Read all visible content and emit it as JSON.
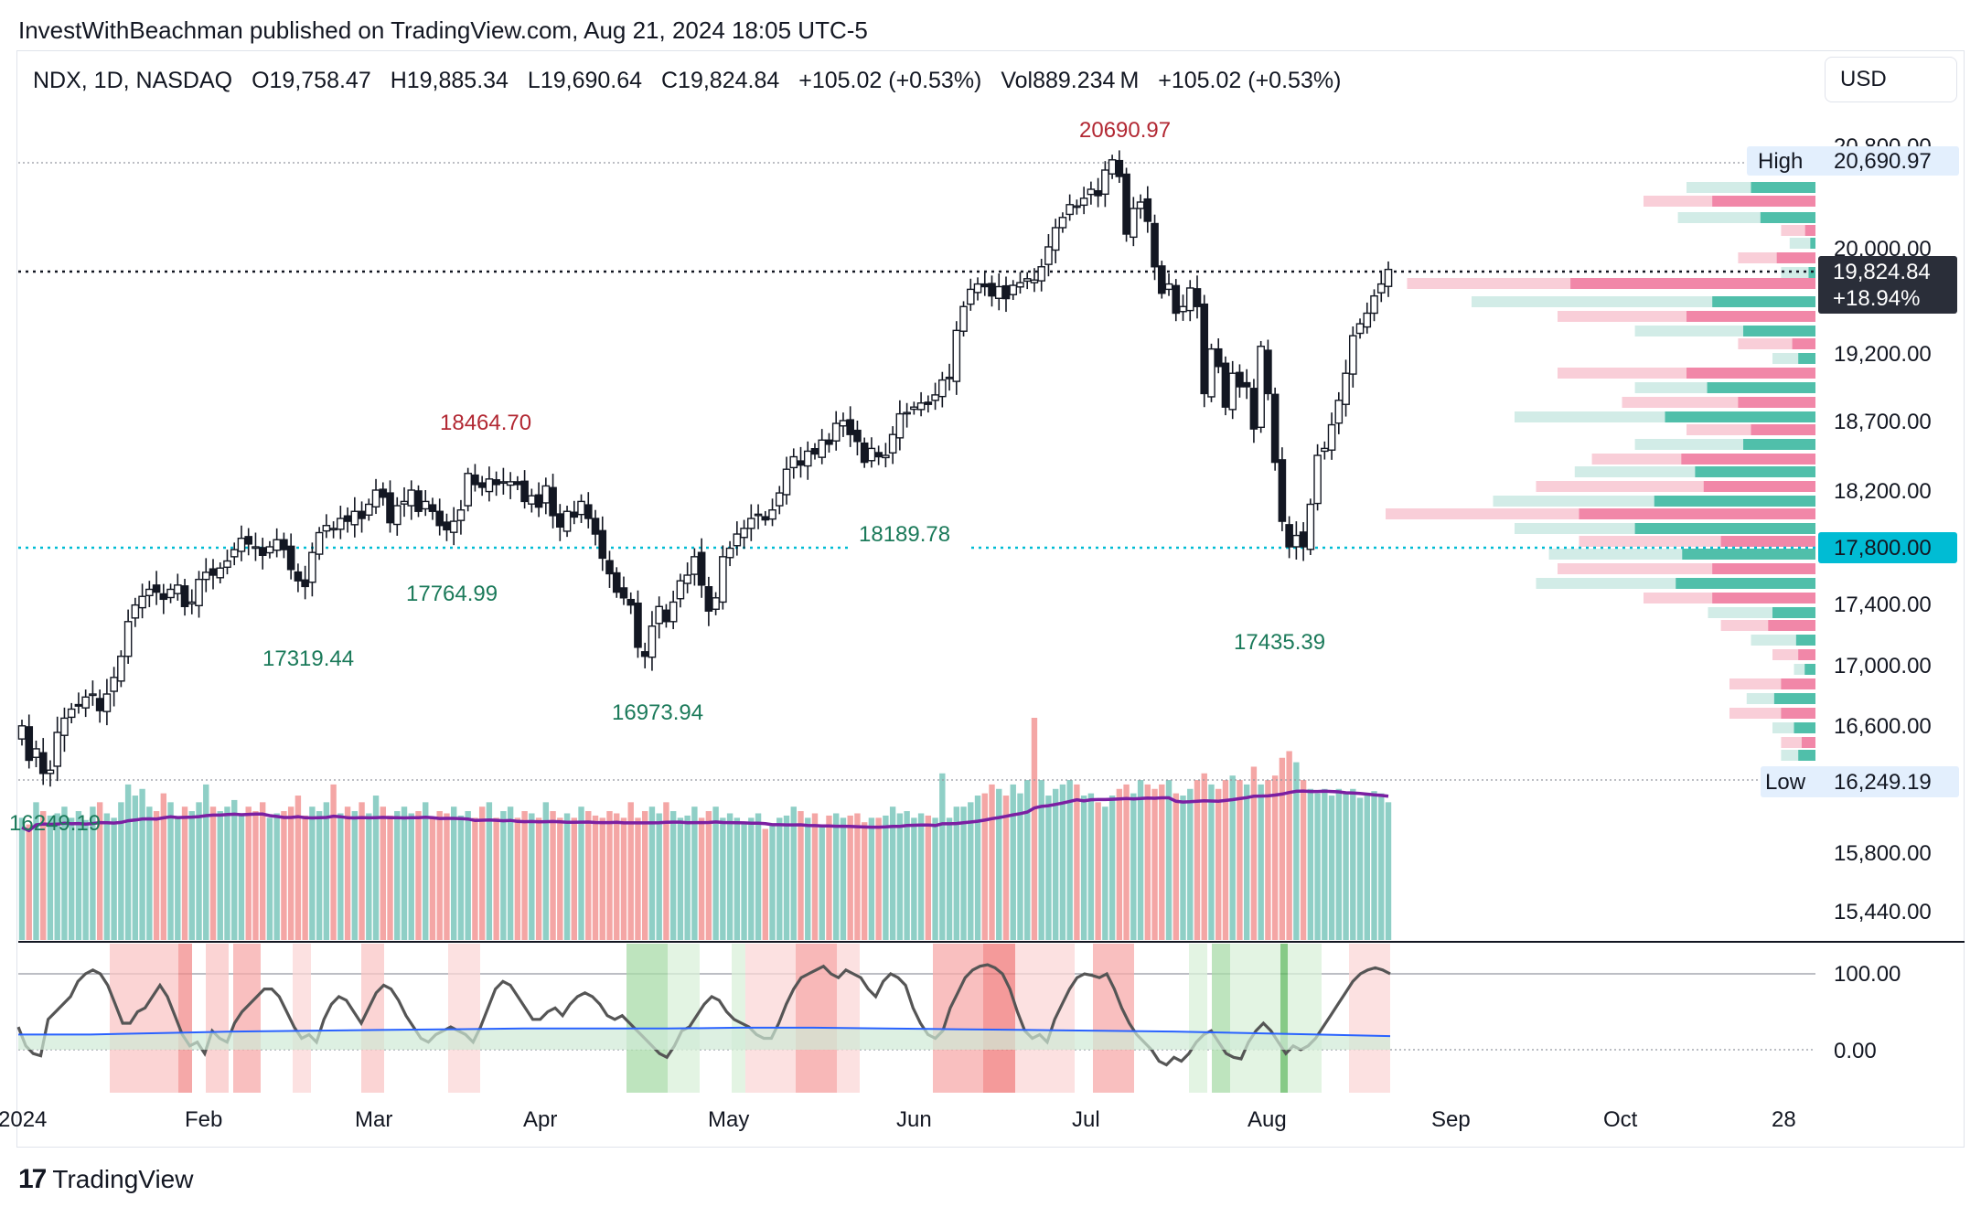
{
  "publish_line": "InvestWithBeachman published on TradingView.com, Aug 21, 2024 18:05 UTC-5",
  "legend": {
    "symbol": "NDX, 1D, NASDAQ",
    "open": "O19,758.47",
    "high": "H19,885.34",
    "low": "L19,690.64",
    "close": "C19,824.84",
    "change": "+105.02 (+0.53%)",
    "volume": "Vol889.234 M",
    "vol_change": "+105.02 (+0.53%)"
  },
  "currency": "USD",
  "footer": {
    "logo": "17",
    "brand": "TradingView"
  },
  "colors": {
    "up": "#131722",
    "down": "#131722",
    "vol_up": "#8fcfc6",
    "vol_down": "#f4a6a5",
    "vol_ma": "#7b1fa2",
    "osc": "#555555",
    "osc_signal": "#2962ff",
    "support": "#00bcd4",
    "high_label": "#b22833",
    "low_label": "#1b7a5a",
    "current_badge": "#2a2e39"
  },
  "chart_data": {
    "type": "candlestick",
    "title": "",
    "x_ticks": [
      "2024",
      "Feb",
      "Mar",
      "Apr",
      "May",
      "Jun",
      "Jul",
      "Aug",
      "Sep",
      "Oct",
      "28"
    ],
    "price_axis_ticks": [
      "20,800.00",
      "20,000.00",
      "19,200.00",
      "18,700.00",
      "18,200.00",
      "17,400.00",
      "17,000.00",
      "16,600.00",
      "15,800.00",
      "15,440.00"
    ],
    "oscillator_ticks": [
      "100.00",
      "0.00"
    ],
    "axis_badges": {
      "high": {
        "label": "High",
        "value": "20,690.97"
      },
      "current": {
        "value": "19,824.84",
        "change": "+18.94%"
      },
      "support": {
        "value": "17,800.00"
      },
      "low": {
        "label": "Low",
        "value": "16,249.19"
      }
    },
    "annotations": {
      "peak_high": "20690.97",
      "mar_high": "18464.70",
      "feb_low": "17319.44",
      "mar_low": "17764.99",
      "apr_low": "16973.94",
      "may_level": "18189.78",
      "aug_low": "17435.39",
      "jan_low": "16249.19"
    },
    "closes": [
      16590,
      16380,
      16450,
      16300,
      16320,
      16550,
      16640,
      16700,
      16720,
      16780,
      16800,
      16690,
      16800,
      16910,
      17050,
      17280,
      17390,
      17450,
      17500,
      17480,
      17430,
      17500,
      17530,
      17380,
      17410,
      17570,
      17620,
      17600,
      17650,
      17700,
      17780,
      17860,
      17820,
      17800,
      17740,
      17800,
      17850,
      17780,
      17640,
      17560,
      17520,
      17760,
      17900,
      17950,
      17930,
      18000,
      17980,
      18050,
      18000,
      18100,
      18200,
      18150,
      17970,
      18090,
      18120,
      18200,
      18050,
      18120,
      18050,
      17950,
      17920,
      17980,
      18060,
      18320,
      18240,
      18220,
      18280,
      18240,
      18260,
      18260,
      18240,
      18120,
      18160,
      18080,
      18230,
      18020,
      17940,
      18050,
      18010,
      18120,
      18000,
      17890,
      17720,
      17610,
      17480,
      17440,
      17390,
      17110,
      17050,
      17250,
      17380,
      17280,
      17410,
      17560,
      17600,
      17730,
      17530,
      17350,
      17440,
      17730,
      17790,
      17890,
      17930,
      18000,
      18030,
      17990,
      18060,
      18180,
      18350,
      18440,
      18380,
      18480,
      18460,
      18560,
      18530,
      18680,
      18700,
      18600,
      18550,
      18400,
      18500,
      18440,
      18450,
      18600,
      18750,
      18760,
      18800,
      18830,
      18820,
      18890,
      19000,
      19020,
      19370,
      19550,
      19680,
      19720,
      19700,
      19630,
      19700,
      19610,
      19710,
      19730,
      19760,
      19750,
      19850,
      20000,
      20150,
      20230,
      20330,
      20320,
      20380,
      20450,
      20400,
      20600,
      20680,
      20550,
      20100,
      20300,
      20350,
      20200,
      19850,
      19650,
      19720,
      19500,
      19550,
      19690,
      19550,
      18900,
      19230,
      19100,
      18800,
      19050,
      18950,
      18950,
      18640,
      19250,
      18900,
      18400,
      17980,
      17800,
      17880,
      17800,
      18100,
      18450,
      18500,
      18670,
      18850,
      19050,
      19330,
      19420,
      19500,
      19630,
      19720,
      19830
    ],
    "volume_axis_note": "",
    "volumes": [
      0.55,
      0.52,
      0.62,
      0.58,
      0.56,
      0.57,
      0.6,
      0.55,
      0.58,
      0.54,
      0.6,
      0.62,
      0.57,
      0.55,
      0.62,
      0.7,
      0.65,
      0.68,
      0.6,
      0.58,
      0.66,
      0.62,
      0.55,
      0.6,
      0.58,
      0.62,
      0.7,
      0.6,
      0.58,
      0.6,
      0.63,
      0.57,
      0.6,
      0.58,
      0.62,
      0.55,
      0.57,
      0.58,
      0.6,
      0.65,
      0.56,
      0.6,
      0.58,
      0.62,
      0.7,
      0.57,
      0.6,
      0.58,
      0.62,
      0.57,
      0.65,
      0.6,
      0.56,
      0.58,
      0.6,
      0.57,
      0.58,
      0.62,
      0.55,
      0.58,
      0.57,
      0.6,
      0.56,
      0.58,
      0.55,
      0.6,
      0.62,
      0.55,
      0.58,
      0.6,
      0.55,
      0.58,
      0.57,
      0.55,
      0.62,
      0.58,
      0.55,
      0.57,
      0.55,
      0.6,
      0.58,
      0.56,
      0.55,
      0.58,
      0.57,
      0.55,
      0.62,
      0.55,
      0.58,
      0.6,
      0.57,
      0.62,
      0.58,
      0.55,
      0.56,
      0.6,
      0.55,
      0.58,
      0.6,
      0.55,
      0.57,
      0.55,
      0.53,
      0.55,
      0.57,
      0.5,
      0.52,
      0.55,
      0.56,
      0.6,
      0.58,
      0.55,
      0.57,
      0.52,
      0.56,
      0.57,
      0.55,
      0.56,
      0.57,
      0.53,
      0.55,
      0.55,
      0.56,
      0.6,
      0.57,
      0.58,
      0.55,
      0.57,
      0.56,
      0.55,
      0.75,
      0.55,
      0.6,
      0.6,
      0.62,
      0.65,
      0.66,
      0.7,
      0.68,
      0.65,
      0.7,
      0.66,
      0.72,
      1.0,
      0.72,
      0.65,
      0.68,
      0.7,
      0.72,
      0.7,
      0.65,
      0.66,
      0.62,
      0.6,
      0.65,
      0.68,
      0.7,
      0.66,
      0.72,
      0.7,
      0.68,
      0.7,
      0.72,
      0.66,
      0.65,
      0.68,
      0.72,
      0.75,
      0.7,
      0.68,
      0.72,
      0.74,
      0.72,
      0.7,
      0.78,
      0.7,
      0.72,
      0.74,
      0.82,
      0.85,
      0.8,
      0.72,
      0.68,
      0.66,
      0.68,
      0.65,
      0.68,
      0.66,
      0.68,
      0.64,
      0.65,
      0.67,
      0.66,
      0.62
    ],
    "oscillator": {
      "ylim": [
        -20,
        120
      ],
      "shaded_zones": [
        "overbought",
        "oversold"
      ]
    }
  }
}
